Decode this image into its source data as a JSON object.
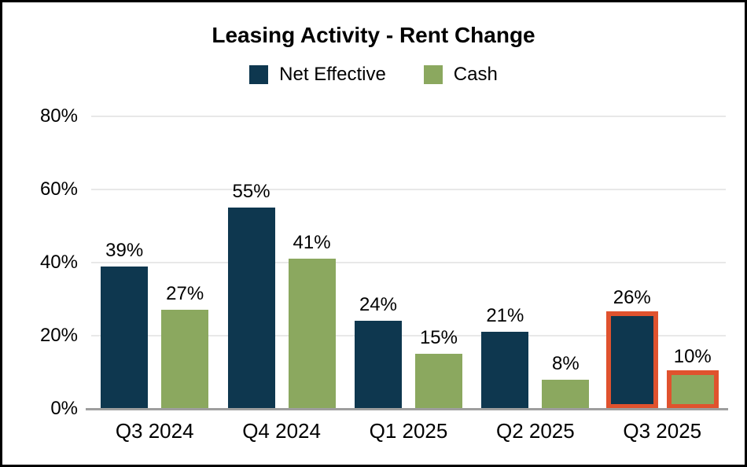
{
  "title": "Leasing Activity - Rent Change",
  "legend": {
    "items": [
      {
        "label": "Net Effective",
        "color": "#0E374F"
      },
      {
        "label": "Cash",
        "color": "#8BA85F"
      }
    ]
  },
  "colors": {
    "net_effective": "#0E374F",
    "cash": "#8BA85F",
    "highlight_outline": "#E0522E",
    "gridline": "#E8E8E8",
    "axis_line": "#9E9E9E"
  },
  "chart_data": {
    "type": "bar",
    "title": "Leasing Activity - Rent Change",
    "categories": [
      "Q3 2024",
      "Q4 2024",
      "Q1 2025",
      "Q2 2025",
      "Q3 2025"
    ],
    "series": [
      {
        "name": "Net Effective",
        "color": "#0E374F",
        "values": [
          39,
          55,
          24,
          21,
          26
        ]
      },
      {
        "name": "Cash",
        "color": "#8BA85F",
        "values": [
          27,
          41,
          15,
          8,
          10
        ]
      }
    ],
    "value_suffix": "%",
    "xlabel": "",
    "ylabel": "",
    "ylim": [
      0,
      80
    ],
    "yticks": [
      0,
      20,
      40,
      60,
      80
    ],
    "ytick_labels": [
      "0%",
      "20%",
      "40%",
      "60%",
      "80%"
    ],
    "grid": "horizontal",
    "legend_position": "top",
    "highlighted_category": "Q3 2025",
    "highlight_color": "#E0522E",
    "highlight_border_px": 6
  }
}
